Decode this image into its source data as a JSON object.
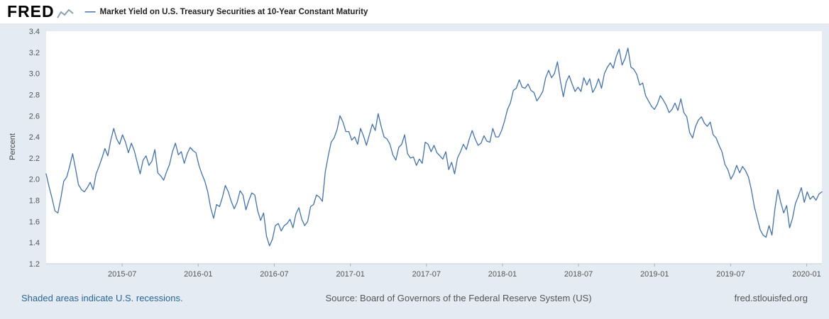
{
  "header": {
    "logo_text": "FRED",
    "legend": {
      "dash": "—",
      "label": "Market Yield on U.S. Treasury Securities at 10-Year Constant Maturity"
    }
  },
  "footer": {
    "recessions_note": "Shaded areas indicate U.S. recessions.",
    "source": "Source: Board of Governors of the Federal Reserve System (US)",
    "site": "fred.stlouisfed.org"
  },
  "colors": {
    "line": "#4572a7",
    "background": "#e4ebf2",
    "plot_background": "#ffffff",
    "axis": "#c6d0d9",
    "tick_mark": "#aab4bc",
    "tick_text": "#555555",
    "link": "#2a6496"
  },
  "chart_data": {
    "type": "line",
    "title": "Market Yield on U.S. Treasury Securities at 10-Year Constant Maturity",
    "xlabel": "",
    "ylabel": "Percent",
    "ylim": [
      1.2,
      3.4
    ],
    "yticks": [
      1.2,
      1.4,
      1.6,
      1.8,
      2.0,
      2.2,
      2.4,
      2.6,
      2.8,
      3.0,
      3.2,
      3.4
    ],
    "x_range": [
      2015.0,
      2020.1
    ],
    "xtick_positions": [
      2015.5,
      2016.0,
      2016.5,
      2017.0,
      2017.5,
      2018.0,
      2018.5,
      2019.0,
      2019.5,
      2020.0
    ],
    "xtick_labels": [
      "2015-07",
      "2016-01",
      "2016-07",
      "2017-01",
      "2017-07",
      "2018-01",
      "2018-07",
      "2019-01",
      "2019-07",
      "2020-01"
    ],
    "grid": false,
    "legend_position": "top-left",
    "series": [
      {
        "name": "Market Yield on U.S. Treasury Securities at 10-Year Constant Maturity",
        "unit": "Percent",
        "color": "#4572a7",
        "values": [
          2.05,
          1.93,
          1.82,
          1.7,
          1.68,
          1.82,
          1.98,
          2.02,
          2.12,
          2.24,
          2.1,
          1.95,
          1.9,
          1.88,
          1.92,
          1.97,
          1.9,
          2.05,
          2.12,
          2.2,
          2.29,
          2.22,
          2.37,
          2.48,
          2.38,
          2.33,
          2.42,
          2.35,
          2.25,
          2.34,
          2.27,
          2.16,
          2.05,
          2.18,
          2.22,
          2.13,
          2.17,
          2.28,
          2.06,
          2.03,
          1.99,
          2.07,
          2.14,
          2.26,
          2.34,
          2.23,
          2.26,
          2.15,
          2.24,
          2.3,
          2.27,
          2.25,
          2.13,
          2.05,
          1.98,
          1.88,
          1.73,
          1.63,
          1.76,
          1.74,
          1.83,
          1.94,
          1.88,
          1.79,
          1.72,
          1.78,
          1.89,
          1.85,
          1.71,
          1.8,
          1.87,
          1.85,
          1.7,
          1.61,
          1.68,
          1.46,
          1.37,
          1.43,
          1.56,
          1.58,
          1.51,
          1.56,
          1.58,
          1.62,
          1.54,
          1.67,
          1.73,
          1.62,
          1.56,
          1.6,
          1.74,
          1.76,
          1.85,
          1.83,
          1.79,
          2.07,
          2.22,
          2.35,
          2.39,
          2.47,
          2.6,
          2.54,
          2.45,
          2.45,
          2.37,
          2.4,
          2.33,
          2.48,
          2.41,
          2.32,
          2.42,
          2.52,
          2.46,
          2.62,
          2.5,
          2.4,
          2.38,
          2.33,
          2.23,
          2.18,
          2.3,
          2.33,
          2.42,
          2.24,
          2.2,
          2.21,
          2.13,
          2.19,
          2.15,
          2.35,
          2.33,
          2.26,
          2.32,
          2.25,
          2.22,
          2.19,
          2.26,
          2.09,
          2.16,
          2.05,
          2.2,
          2.26,
          2.33,
          2.28,
          2.38,
          2.46,
          2.38,
          2.32,
          2.34,
          2.41,
          2.36,
          2.35,
          2.48,
          2.4,
          2.4,
          2.46,
          2.55,
          2.66,
          2.72,
          2.84,
          2.86,
          2.94,
          2.87,
          2.86,
          2.9,
          2.84,
          2.82,
          2.74,
          2.78,
          2.83,
          2.96,
          3.03,
          2.96,
          3.0,
          3.11,
          2.93,
          2.78,
          2.92,
          2.98,
          2.9,
          2.83,
          2.87,
          2.83,
          2.96,
          2.89,
          2.95,
          2.82,
          2.87,
          2.95,
          2.86,
          3.0,
          3.06,
          3.1,
          3.05,
          3.16,
          3.23,
          3.08,
          3.14,
          3.24,
          3.06,
          3.04,
          2.99,
          2.89,
          2.91,
          2.79,
          2.74,
          2.69,
          2.66,
          2.71,
          2.79,
          2.75,
          2.7,
          2.63,
          2.66,
          2.72,
          2.65,
          2.76,
          2.63,
          2.59,
          2.44,
          2.39,
          2.5,
          2.56,
          2.59,
          2.53,
          2.5,
          2.54,
          2.42,
          2.39,
          2.32,
          2.26,
          2.14,
          2.09,
          2.0,
          2.05,
          2.13,
          2.06,
          2.12,
          2.08,
          2.02,
          1.9,
          1.74,
          1.63,
          1.52,
          1.47,
          1.45,
          1.56,
          1.47,
          1.72,
          1.9,
          1.78,
          1.68,
          1.75,
          1.54,
          1.63,
          1.77,
          1.84,
          1.92,
          1.78,
          1.88,
          1.81,
          1.84,
          1.8,
          1.86,
          1.88
        ]
      }
    ]
  }
}
